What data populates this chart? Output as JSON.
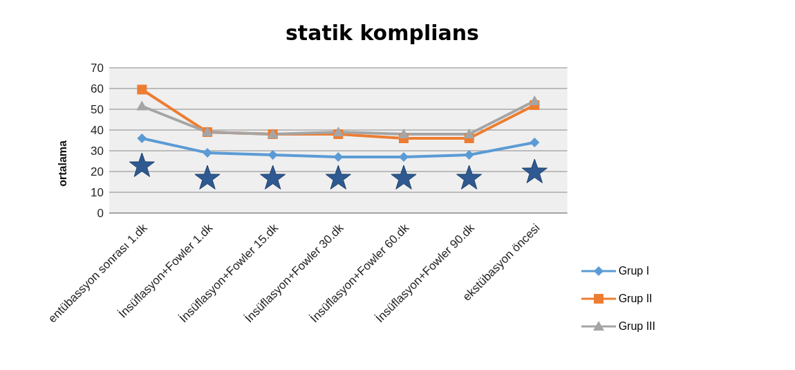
{
  "chart_data": {
    "type": "line",
    "title": "statik komplians",
    "ylabel": "ortalama",
    "categories": [
      "entübassyon sonrası 1.dk",
      "İnsüflasyon+Fowler 1.dk",
      "İnsüflasyon+Fowler 15.dk",
      "İnsüflasyon+Fowler 30.dk",
      "İnsüflasyon+Fowler 60.dk",
      "İnsüflasyon+Fowler 90.dk",
      "ekstübasyon öncesi"
    ],
    "series": [
      {
        "name": "Grup I",
        "color": "#5b9bd5",
        "marker": "diamond",
        "values": [
          36,
          29,
          28,
          27,
          27,
          28,
          34
        ]
      },
      {
        "name": "Grup II",
        "color": "#ed7d31",
        "marker": "square",
        "values": [
          59.5,
          39,
          38,
          38,
          36,
          36,
          52
        ]
      },
      {
        "name": "Grup III",
        "color": "#a5a5a5",
        "marker": "triangle",
        "values": [
          51.5,
          39,
          38,
          39,
          38,
          38,
          54
        ]
      }
    ],
    "ylim": [
      0,
      70
    ],
    "yticks": [
      0,
      10,
      20,
      30,
      40,
      50,
      60,
      70
    ],
    "grid": "y",
    "legend": "bottom right"
  }
}
